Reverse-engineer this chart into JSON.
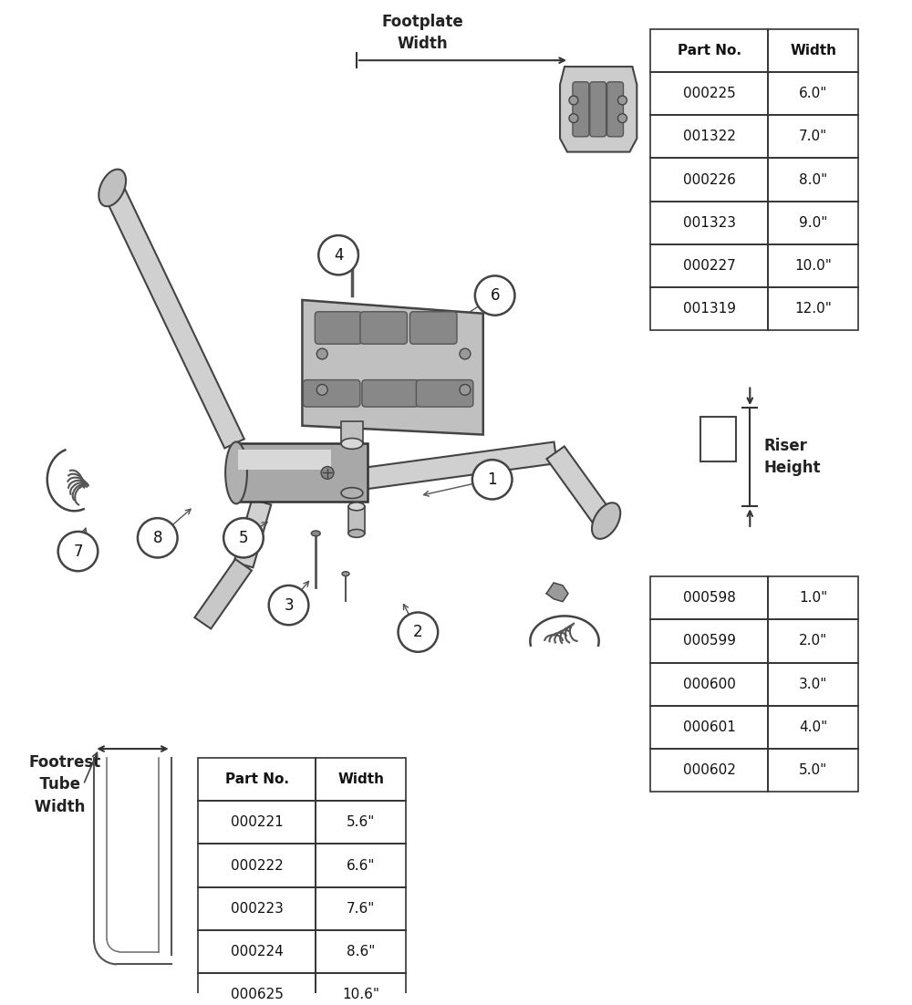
{
  "bg_color": "#ffffff",
  "footplate_table": {
    "header": [
      "Part No.",
      "Width"
    ],
    "rows": [
      [
        "000225",
        "6.0\""
      ],
      [
        "001322",
        "7.0\""
      ],
      [
        "000226",
        "8.0\""
      ],
      [
        "001323",
        "9.0\""
      ],
      [
        "000227",
        "10.0\""
      ],
      [
        "001319",
        "12.0\""
      ]
    ]
  },
  "riser_table": {
    "rows": [
      [
        "000598",
        "1.0\""
      ],
      [
        "000599",
        "2.0\""
      ],
      [
        "000600",
        "3.0\""
      ],
      [
        "000601",
        "4.0\""
      ],
      [
        "000602",
        "5.0\""
      ]
    ]
  },
  "tube_table": {
    "header": [
      "Part No.",
      "Width"
    ],
    "rows": [
      [
        "000221",
        "5.6\""
      ],
      [
        "000222",
        "6.6\""
      ],
      [
        "000223",
        "7.6\""
      ],
      [
        "000224",
        "8.6\""
      ],
      [
        "000625",
        "10.6\""
      ]
    ]
  }
}
